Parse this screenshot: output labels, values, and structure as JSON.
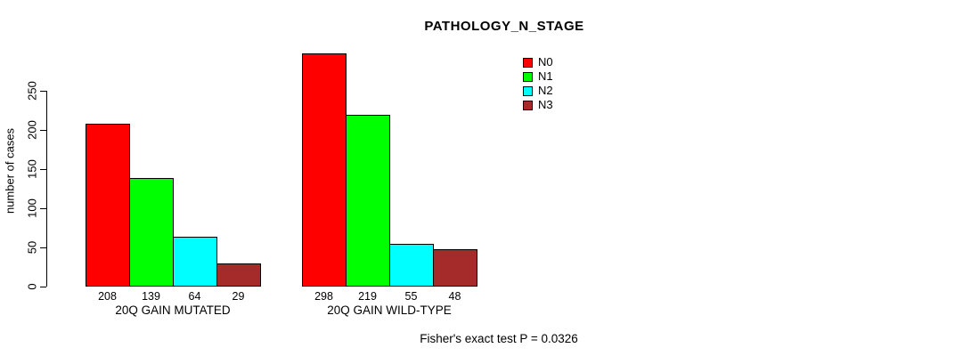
{
  "chart_data": {
    "type": "bar",
    "title": "PATHOLOGY_N_STAGE",
    "ylabel": "number of cases",
    "ylim": [
      0,
      250
    ],
    "yticks": [
      0,
      50,
      100,
      150,
      200,
      250
    ],
    "grid": false,
    "legend_position": "top-right",
    "series_colors": [
      "#FF0000",
      "#00FF00",
      "#00FFFF",
      "#A52A2A"
    ],
    "legend": [
      {
        "label": "N0",
        "color": "#FF0000"
      },
      {
        "label": "N1",
        "color": "#00FF00"
      },
      {
        "label": "N2",
        "color": "#00FFFF"
      },
      {
        "label": "N3",
        "color": "#A52A2A"
      }
    ],
    "categories": [
      "20Q GAIN MUTATED",
      "20Q GAIN WILD-TYPE"
    ],
    "groups": [
      {
        "label": "20Q GAIN MUTATED",
        "values": [
          208,
          139,
          64,
          29
        ]
      },
      {
        "label": "20Q GAIN WILD-TYPE",
        "values": [
          298,
          219,
          55,
          48
        ]
      }
    ],
    "footnote": "Fisher's exact test P = 0.0326"
  }
}
